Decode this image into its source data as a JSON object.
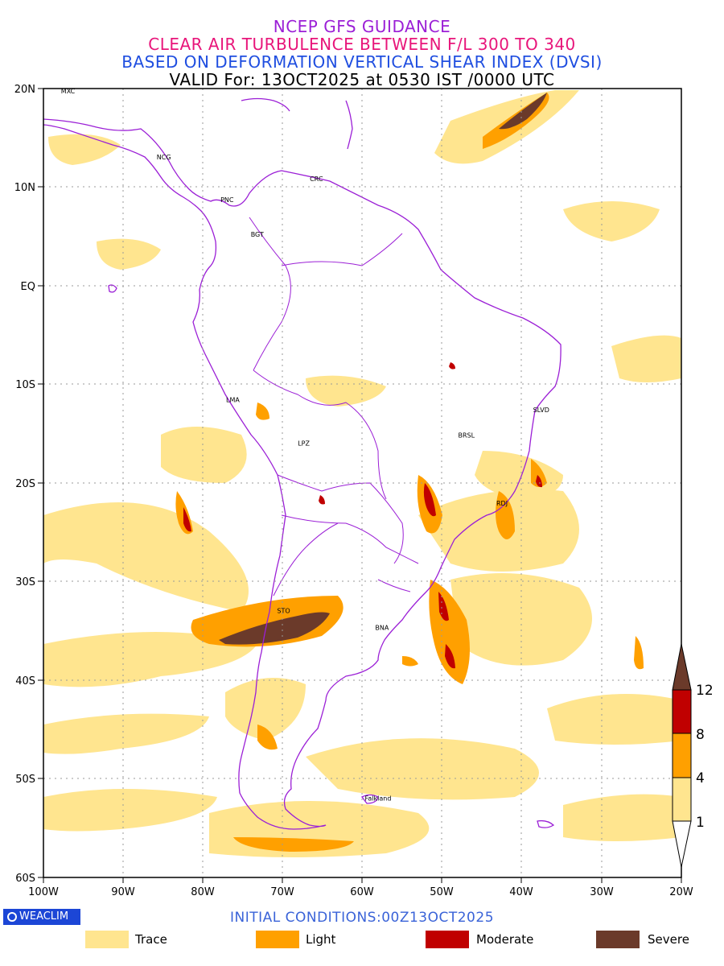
{
  "title": {
    "line1": "NCEP GFS GUIDANCE",
    "line2": "CLEAR AIR TURBULENCE BETWEEN F/L 300 TO 340",
    "line3": "BASED ON DEFORMATION VERTICAL SHEAR INDEX (DVSI)",
    "line4": "VALID For: 13OCT2025 at 0530 IST /0000 UTC"
  },
  "colors": {
    "title1": "#9b1fd6",
    "title2": "#e8157a",
    "title3": "#1f4ee0",
    "trace": "#ffe58f",
    "light": "#ffa000",
    "moderate": "#c00000",
    "severe": "#6b3a2a",
    "coast": "#9b1fd6"
  },
  "axes": {
    "lat_labels": [
      "20N",
      "10N",
      "EQ",
      "10S",
      "20S",
      "30S",
      "40S",
      "50S",
      "60S"
    ],
    "lon_labels": [
      "100W",
      "90W",
      "80W",
      "70W",
      "60W",
      "50W",
      "40W",
      "30W",
      "20W"
    ]
  },
  "colorbar": {
    "ticks": [
      "12",
      "8",
      "4",
      "1"
    ]
  },
  "cities": [
    {
      "name": "MXC",
      "lon": -97.8,
      "lat": 19.5
    },
    {
      "name": "NCG",
      "lon": -85.8,
      "lat": 12.8
    },
    {
      "name": "PNC",
      "lon": -77.8,
      "lat": 8.5
    },
    {
      "name": "CRC",
      "lon": -66.6,
      "lat": 10.6
    },
    {
      "name": "BGT",
      "lon": -74.0,
      "lat": 5.0
    },
    {
      "name": "LMA",
      "lon": -77.1,
      "lat": -11.8
    },
    {
      "name": "LPZ",
      "lon": -68.1,
      "lat": -16.2
    },
    {
      "name": "BRSL",
      "lon": -48.0,
      "lat": -15.4
    },
    {
      "name": "SLVD",
      "lon": -38.6,
      "lat": -12.8
    },
    {
      "name": "RDJ",
      "lon": -43.2,
      "lat": -22.3
    },
    {
      "name": "STO",
      "lon": -70.7,
      "lat": -33.2
    },
    {
      "name": "BNA",
      "lon": -58.4,
      "lat": -34.9
    },
    {
      "name": "Falkland",
      "lon": -59.7,
      "lat": -52.2
    }
  ],
  "footer": {
    "logo": "WEACLIM",
    "initial": "INITIAL CONDITIONS:00Z13OCT2025"
  },
  "legend": [
    {
      "label": "Trace",
      "color": "#ffe58f"
    },
    {
      "label": "Light",
      "color": "#ffa000"
    },
    {
      "label": "Moderate",
      "color": "#c00000"
    },
    {
      "label": "Severe",
      "color": "#6b3a2a"
    }
  ]
}
